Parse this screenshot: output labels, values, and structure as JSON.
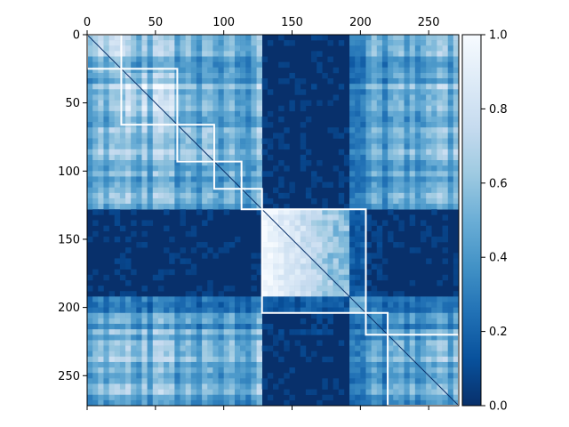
{
  "chart_data": {
    "type": "heatmap",
    "title": "",
    "xlabel": "",
    "ylabel": "",
    "size": 272,
    "xlim": [
      0,
      272
    ],
    "ylim": [
      272,
      0
    ],
    "x_ticks": [
      0,
      50,
      100,
      150,
      200,
      250
    ],
    "x_tick_labels": [
      "0",
      "50",
      "100",
      "150",
      "200",
      "250"
    ],
    "y_ticks": [
      0,
      50,
      100,
      150,
      200,
      250
    ],
    "y_tick_labels": [
      "0",
      "50",
      "100",
      "150",
      "200",
      "250"
    ],
    "colormap": "Blues_r",
    "vmin": 0.0,
    "vmax": 1.0,
    "colorbar_ticks": [
      0.0,
      0.2,
      0.4,
      0.6,
      0.8,
      1.0
    ],
    "colorbar_tick_labels": [
      "0.0",
      "0.2",
      "0.4",
      "0.6",
      "0.8",
      "1.0"
    ],
    "dark_color": "#08306b",
    "light_color": "#f7fbff",
    "highlight_color": "#ffffff",
    "groups": [
      {
        "start": 0,
        "end": 25,
        "mean": 0.75
      },
      {
        "start": 25,
        "end": 66,
        "mean": 0.78
      },
      {
        "start": 66,
        "end": 93,
        "mean": 0.7
      },
      {
        "start": 93,
        "end": 113,
        "mean": 0.68
      },
      {
        "start": 113,
        "end": 128,
        "mean": 0.62
      },
      {
        "start": 128,
        "end": 189,
        "mean": 0.9
      },
      {
        "start": 189,
        "end": 204,
        "mean": 0.55
      },
      {
        "start": 204,
        "end": 220,
        "mean": 0.4
      },
      {
        "start": 220,
        "end": 272,
        "mean": 0.6
      }
    ],
    "cluster_boxes": [
      {
        "start": 0,
        "end": 25
      },
      {
        "start": 25,
        "end": 66
      },
      {
        "start": 66,
        "end": 93
      },
      {
        "start": 93,
        "end": 113
      },
      {
        "start": 113,
        "end": 128
      },
      {
        "start": 128,
        "end": 204
      },
      {
        "start": 204,
        "end": 220
      },
      {
        "start": 220,
        "end": 272
      }
    ]
  }
}
